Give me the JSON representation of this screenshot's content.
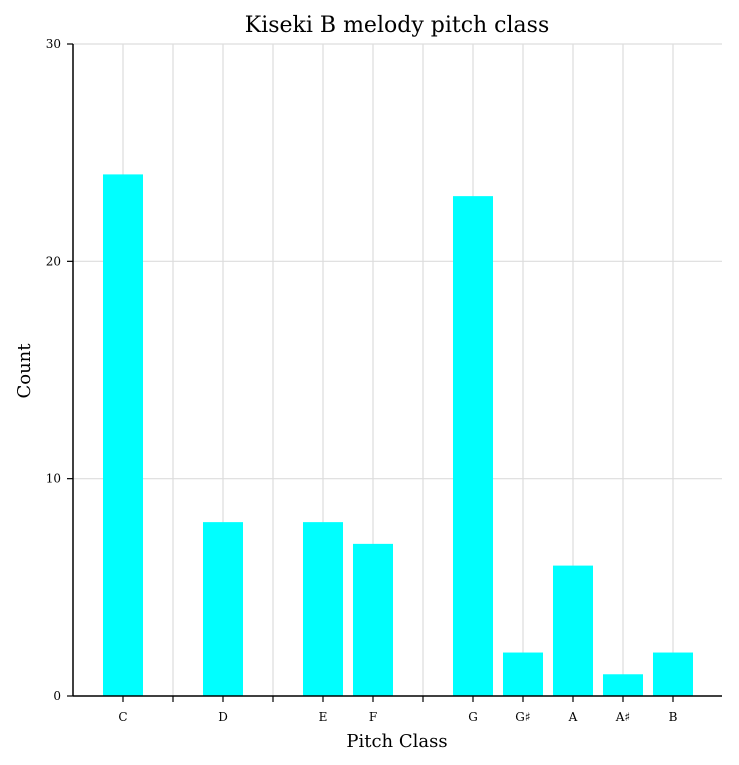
{
  "chart_data": {
    "type": "bar",
    "title": "Kiseki B melody pitch class",
    "xlabel": "Pitch Class",
    "ylabel": "Count",
    "categories": [
      "C",
      "",
      "D",
      "",
      "E",
      "F",
      "",
      "G",
      "G♯",
      "A",
      "A♯",
      "B"
    ],
    "values": [
      24,
      0,
      8,
      0,
      8,
      7,
      0,
      23,
      2,
      6,
      1,
      2
    ],
    "ylim": [
      0,
      30
    ],
    "yticks": [
      0,
      10,
      20,
      30
    ],
    "grid": true,
    "bar_color": "#00ffff",
    "grid_color": "#dddddd"
  }
}
